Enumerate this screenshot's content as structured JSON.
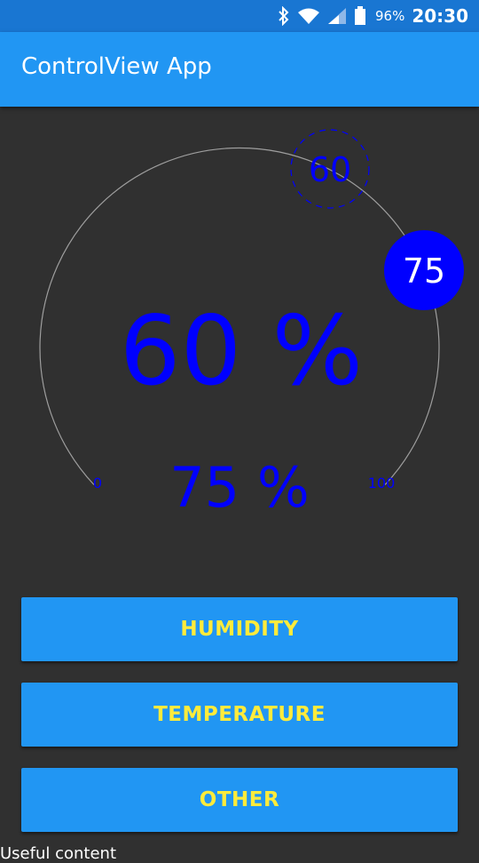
{
  "status_bar": {
    "battery_percent": "96%",
    "time": "20:30",
    "icons": [
      "bluetooth-icon",
      "wifi-icon",
      "cell-signal-icon",
      "battery-icon"
    ]
  },
  "app_bar": {
    "title": "ControlView App"
  },
  "gauge": {
    "main_value_text": "60 %",
    "secondary_value_text": "75 %",
    "min_label": "0",
    "max_label": "100",
    "current_marker_text": "60",
    "target_marker_text": "75",
    "current_value": 60,
    "target_value": 75,
    "value_color": "#0000FF",
    "track_color": "#9E9E9E"
  },
  "buttons": {
    "humidity": "HUMIDITY",
    "temperature": "TEMPERATURE",
    "other": "OTHER",
    "background_color": "#2196F3",
    "text_color": "#FFEB3B"
  },
  "footer": {
    "text": "Useful content"
  }
}
